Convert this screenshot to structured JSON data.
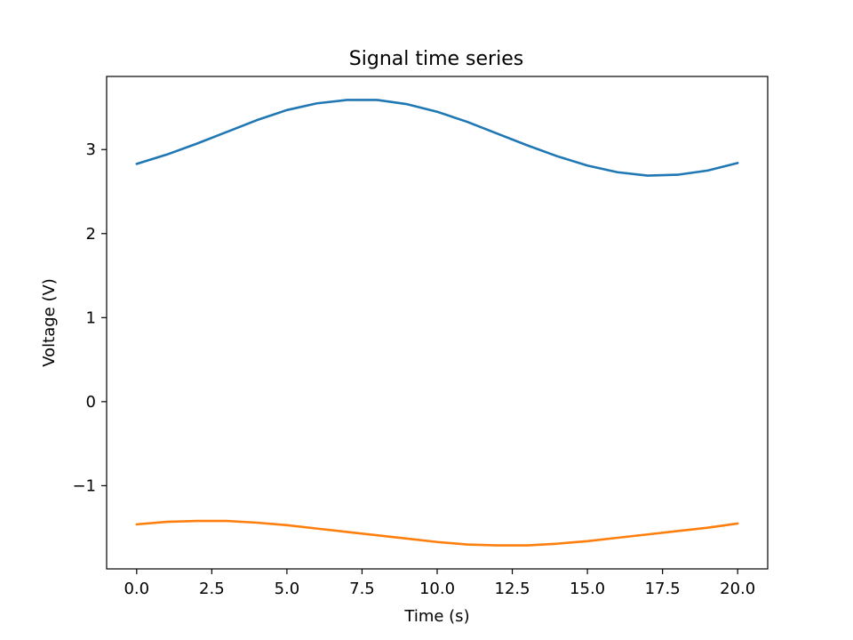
{
  "chart_data": {
    "type": "line",
    "title": "Signal time series",
    "xlabel": "Time (s)",
    "ylabel": "Voltage (V)",
    "xlim": [
      -1.0,
      21.0
    ],
    "ylim": [
      -1.99,
      3.87
    ],
    "xticks": [
      0.0,
      2.5,
      5.0,
      7.5,
      10.0,
      12.5,
      15.0,
      17.5,
      20.0
    ],
    "xtick_labels": [
      "0.0",
      "2.5",
      "5.0",
      "7.5",
      "10.0",
      "12.5",
      "15.0",
      "17.5",
      "20.0"
    ],
    "yticks": [
      -1,
      0,
      1,
      2,
      3
    ],
    "ytick_labels": [
      "−1",
      "0",
      "1",
      "2",
      "3"
    ],
    "grid": false,
    "legend": "none",
    "x": [
      0,
      1,
      2,
      3,
      4,
      5,
      6,
      7,
      8,
      9,
      10,
      11,
      12,
      13,
      14,
      15,
      16,
      17,
      18,
      19,
      20
    ],
    "series": [
      {
        "color": "#1f77b4",
        "values": [
          2.83,
          2.94,
          3.07,
          3.21,
          3.35,
          3.47,
          3.55,
          3.59,
          3.59,
          3.54,
          3.45,
          3.33,
          3.19,
          3.05,
          2.92,
          2.81,
          2.73,
          2.69,
          2.7,
          2.75,
          2.84
        ]
      },
      {
        "color": "#ff7f0e",
        "values": [
          -1.46,
          -1.43,
          -1.42,
          -1.42,
          -1.44,
          -1.47,
          -1.51,
          -1.55,
          -1.59,
          -1.63,
          -1.67,
          -1.7,
          -1.71,
          -1.71,
          -1.69,
          -1.66,
          -1.62,
          -1.58,
          -1.54,
          -1.5,
          -1.45
        ]
      }
    ]
  }
}
